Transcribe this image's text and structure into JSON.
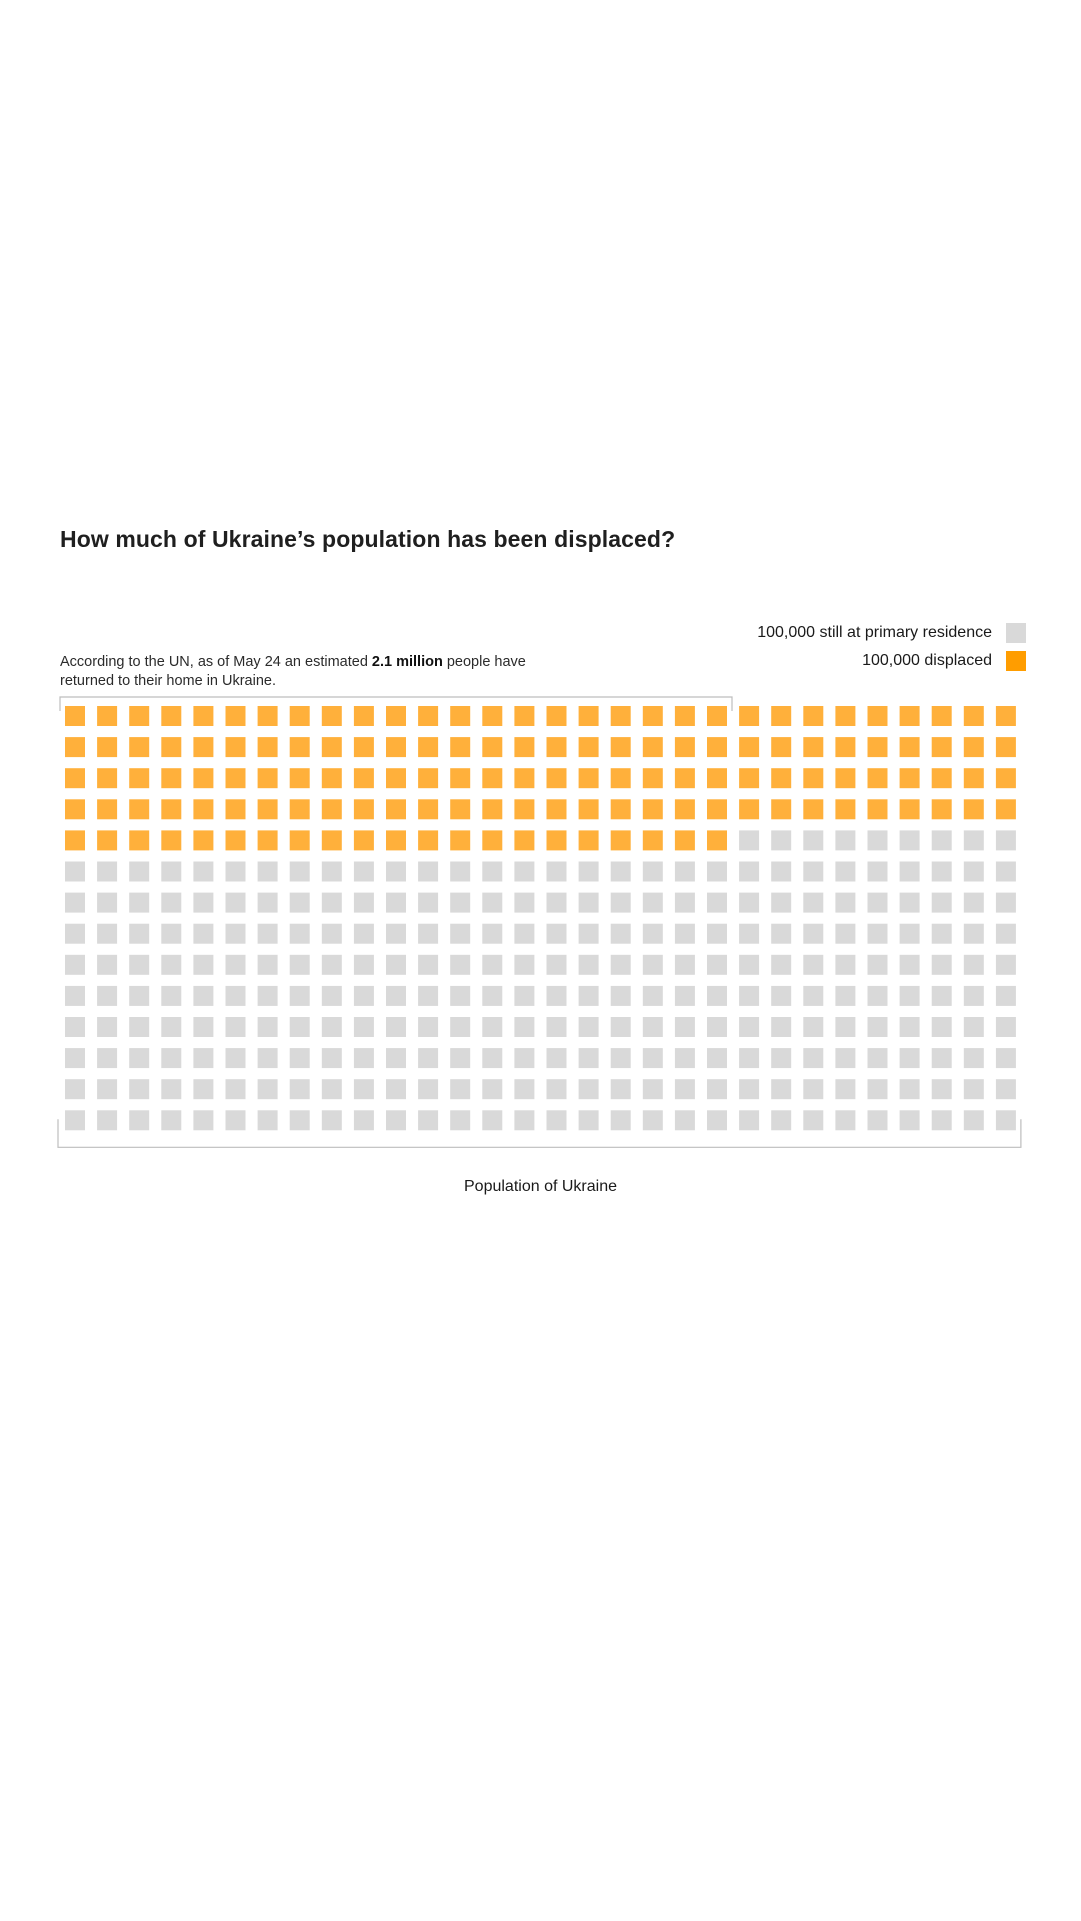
{
  "title": "How much of Ukraine’s population has been displaced?",
  "annotation": {
    "before": "According to the UN, as of May 24 an estimated ",
    "bold": "2.1 million",
    "after": " people have returned to their home in Ukraine."
  },
  "legend": [
    {
      "label": "100,000 still at primary residence",
      "color": "#d9d9d9"
    },
    {
      "label": "100,000 displaced",
      "color": "#ff9d00"
    }
  ],
  "chart_data": {
    "type": "waffle",
    "unit": 100000,
    "units_per_row": 30,
    "series": [
      {
        "name": "100,000 displaced",
        "count": 141,
        "color": "#ffb03b"
      },
      {
        "name": "100,000 still at primary residence",
        "count": 279,
        "color": "#d9d9d9"
      }
    ],
    "total_units": 420,
    "returned_bracket_units": 21,
    "xlabel": "Population of Ukraine"
  }
}
